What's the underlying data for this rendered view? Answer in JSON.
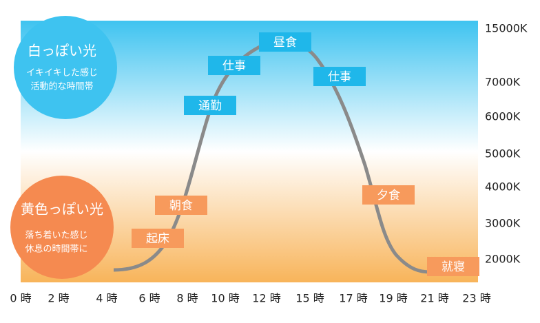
{
  "white_light": {
    "title": "白っぽい光",
    "lines": [
      "イキイキした感じ",
      "活動的な時間帯"
    ]
  },
  "yellow_light": {
    "title": "黄色っぽい光",
    "lines": [
      "落ち着いた感じ",
      "休息の時間帯に"
    ]
  },
  "events": [
    "起床",
    "朝食",
    "通勤",
    "仕事",
    "昼食",
    "仕事",
    "夕食",
    "就寝"
  ],
  "y_axis": [
    "15000K",
    "7000K",
    "6000K",
    "5000K",
    "4000K",
    "3000K",
    "2000K"
  ],
  "x_axis": [
    "0 時",
    "2 時",
    "4 時",
    "6 時",
    "8 時",
    "10 時",
    "12 時",
    "15 時",
    "17 時",
    "19 時",
    "21 時",
    "23 時"
  ]
}
